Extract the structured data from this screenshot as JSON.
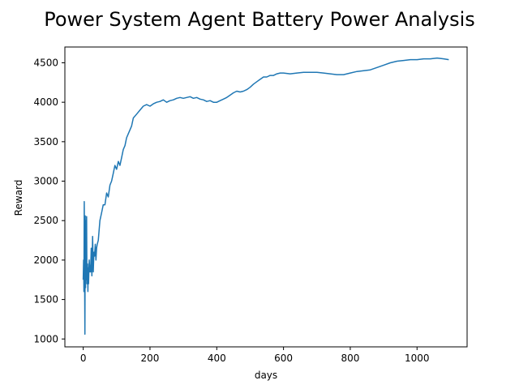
{
  "chart_data": {
    "type": "line",
    "title": "Power System Agent Battery Power Analysis",
    "xlabel": "days",
    "ylabel": "Reward",
    "xlim": [
      -55,
      1150
    ],
    "ylim": [
      900,
      4700
    ],
    "xticks": [
      0,
      200,
      400,
      600,
      800,
      1000
    ],
    "yticks": [
      1000,
      1500,
      2000,
      2500,
      3000,
      3500,
      4000,
      4500
    ],
    "grid": false,
    "legend": "none",
    "color": "#1f77b4",
    "series": [
      {
        "x": [
          0,
          1,
          2,
          3,
          4,
          5,
          6,
          7,
          8,
          9,
          10,
          11,
          12,
          13,
          14,
          15,
          16,
          18,
          20,
          22,
          24,
          26,
          28,
          30,
          32,
          34,
          36,
          38,
          40,
          42,
          45,
          48,
          50,
          55,
          60,
          65,
          70,
          75,
          80,
          85,
          90,
          95,
          100,
          105,
          110,
          115,
          120,
          125,
          130,
          135,
          140,
          145,
          150,
          160,
          170,
          180,
          190,
          200,
          210,
          220,
          230,
          240,
          250,
          260,
          270,
          280,
          290,
          300,
          310,
          320,
          330,
          340,
          350,
          360,
          370,
          380,
          390,
          400,
          410,
          420,
          430,
          440,
          450,
          460,
          470,
          480,
          490,
          500,
          510,
          520,
          530,
          540,
          550,
          560,
          570,
          580,
          590,
          600,
          620,
          640,
          660,
          680,
          700,
          720,
          740,
          760,
          780,
          800,
          820,
          840,
          860,
          880,
          900,
          920,
          940,
          960,
          980,
          1000,
          1020,
          1040,
          1060,
          1080,
          1095
        ],
        "y": [
          1750,
          2000,
          1600,
          2740,
          1900,
          1060,
          2560,
          1650,
          2500,
          1750,
          2550,
          1700,
          1800,
          1950,
          1600,
          1900,
          1700,
          2000,
          1850,
          1850,
          2150,
          1800,
          2300,
          1850,
          2100,
          2050,
          2200,
          2000,
          2150,
          2200,
          2250,
          2400,
          2500,
          2600,
          2700,
          2700,
          2850,
          2800,
          2950,
          3000,
          3100,
          3200,
          3150,
          3250,
          3200,
          3300,
          3400,
          3450,
          3550,
          3600,
          3650,
          3700,
          3800,
          3850,
          3900,
          3950,
          3970,
          3950,
          3980,
          4000,
          4010,
          4030,
          4000,
          4020,
          4030,
          4050,
          4060,
          4050,
          4060,
          4070,
          4050,
          4060,
          4040,
          4030,
          4010,
          4020,
          4000,
          4000,
          4020,
          4040,
          4060,
          4090,
          4120,
          4140,
          4130,
          4140,
          4160,
          4190,
          4230,
          4260,
          4290,
          4320,
          4320,
          4340,
          4340,
          4360,
          4370,
          4370,
          4360,
          4370,
          4380,
          4380,
          4380,
          4370,
          4360,
          4350,
          4350,
          4370,
          4390,
          4400,
          4410,
          4440,
          4470,
          4500,
          4520,
          4530,
          4540,
          4540,
          4550,
          4550,
          4560,
          4550,
          4540
        ]
      }
    ]
  }
}
